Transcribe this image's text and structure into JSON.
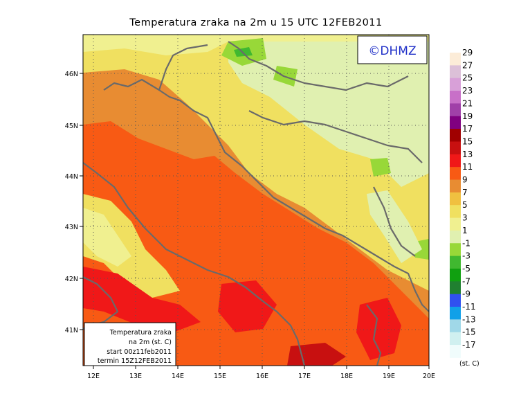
{
  "title": "Temperatura zraka na 2m u 15 UTC 12FEB2011",
  "logo": "©DHMZ",
  "info_box": {
    "line1": "Temperatura zraka",
    "line2": "na 2m (st. C)",
    "line3": "start 00z11feb2011",
    "line4": "termin 15Z12FEB2011"
  },
  "lat_labels": [
    "46N",
    "45N",
    "44N",
    "43N",
    "42N",
    "41N"
  ],
  "lon_labels": [
    "12E",
    "13E",
    "14E",
    "15E",
    "16E",
    "17E",
    "18E",
    "19E",
    "20E"
  ],
  "legend": {
    "unit": "(st. C)",
    "labels": [
      "29",
      "27",
      "25",
      "23",
      "21",
      "19",
      "17",
      "15",
      "13",
      "11",
      "9",
      "7",
      "5",
      "3",
      "1",
      "-1",
      "-3",
      "-5",
      "-7",
      "-9",
      "-11",
      "-13",
      "-15",
      "-17"
    ],
    "colors": [
      "#fcecd8",
      "#dcc0d8",
      "#d8a0d8",
      "#c870c8",
      "#a040a8",
      "#800080",
      "#a00000",
      "#c81010",
      "#f01818",
      "#f85a14",
      "#e88c32",
      "#f0c040",
      "#f0e060",
      "#f0f090",
      "#e0f0b0",
      "#98d838",
      "#40b830",
      "#10a010",
      "#208030",
      "#3050f0",
      "#10a0e8",
      "#a0d8e8",
      "#d0f0f0",
      "#f0fcfc"
    ]
  }
}
